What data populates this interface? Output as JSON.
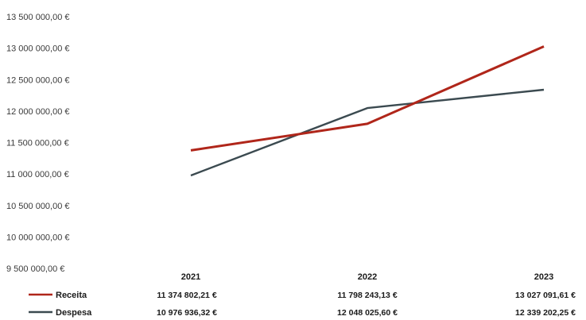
{
  "chart_data": {
    "type": "line",
    "categories": [
      "2021",
      "2022",
      "2023"
    ],
    "y_ticks": [
      "9 500 000,00 €",
      "10 000 000,00 €",
      "10 500 000,00 €",
      "11 000 000,00 €",
      "11 500 000,00 €",
      "12 000 000,00 €",
      "12 500 000,00 €",
      "13 000 000,00 €",
      "13 500 000,00 €"
    ],
    "ylim": [
      9500000,
      13500000
    ],
    "grid": false,
    "legend_position": "bottom-left (data table)",
    "series": [
      {
        "name": "Receita",
        "color": "#b0261a",
        "values": [
          11374802.21,
          11798243.13,
          13027091.61
        ],
        "labels": [
          "11 374 802,21 €",
          "11 798 243,13 €",
          "13 027 091,61 €"
        ]
      },
      {
        "name": "Despesa",
        "color": "#3b4a50",
        "values": [
          10976936.32,
          12048025.6,
          12339202.25
        ],
        "labels": [
          "10 976 936,32 €",
          "12 048 025,60 €",
          "12 339 202,25 €"
        ]
      }
    ]
  }
}
